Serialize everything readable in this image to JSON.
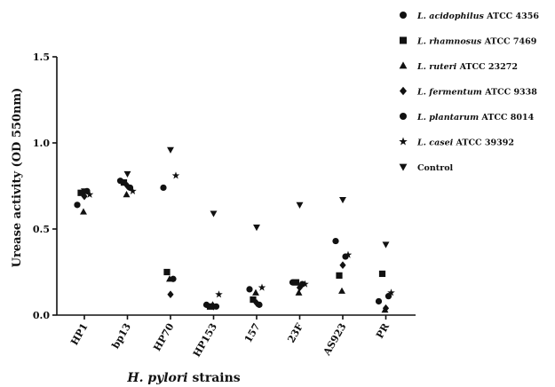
{
  "chart_data": {
    "type": "scatter",
    "title": "",
    "ylabel": "Urease activity (OD 550nm)",
    "xlabel_italic": "H. pylori",
    "xlabel_rest": " strains",
    "ylim": [
      0,
      1.5
    ],
    "yticks": [
      "0.0",
      "0.5",
      "1.0",
      "1.5"
    ],
    "ytick_values": [
      0,
      0.5,
      1.0,
      1.5
    ],
    "categories": [
      "HP1",
      "bp13",
      "HP70",
      "HP153",
      "157",
      "23F",
      "AS923",
      "PR"
    ],
    "legend_position": "top-right",
    "series": [
      {
        "species": "L. acidophilus",
        "strain": "ATCC 4356",
        "marker": "circle",
        "values": [
          0.64,
          0.78,
          0.74,
          0.06,
          0.15,
          0.19,
          0.43,
          0.08
        ]
      },
      {
        "species": "L. rhamnosus",
        "strain": "ATCC 7469",
        "marker": "square",
        "values": [
          0.71,
          0.77,
          0.25,
          0.05,
          0.09,
          0.19,
          0.23,
          0.24
        ]
      },
      {
        "species": "L. ruteri",
        "strain": "ATCC 23272",
        "marker": "triangle-up",
        "values": [
          0.6,
          0.7,
          0.21,
          0.06,
          0.13,
          0.13,
          0.14,
          0.03
        ]
      },
      {
        "species": "L. fermentum",
        "strain": "ATCC 9338",
        "marker": "diamond",
        "values": [
          0.69,
          0.75,
          0.12,
          0.05,
          0.07,
          0.16,
          0.29,
          0.04
        ]
      },
      {
        "species": "L. plantarum",
        "strain": "ATCC 8014",
        "marker": "circle",
        "values": [
          0.72,
          0.74,
          0.21,
          0.05,
          0.06,
          0.18,
          0.34,
          0.11
        ]
      },
      {
        "species": "L. casei",
        "strain": "ATCC 39392",
        "marker": "star",
        "values": [
          0.7,
          0.72,
          0.81,
          0.12,
          0.16,
          0.18,
          0.35,
          0.13
        ]
      },
      {
        "species": "Control",
        "strain": "",
        "marker": "triangle-down",
        "values": [
          0.72,
          0.82,
          0.96,
          0.59,
          0.51,
          0.64,
          0.67,
          0.41
        ]
      }
    ]
  }
}
